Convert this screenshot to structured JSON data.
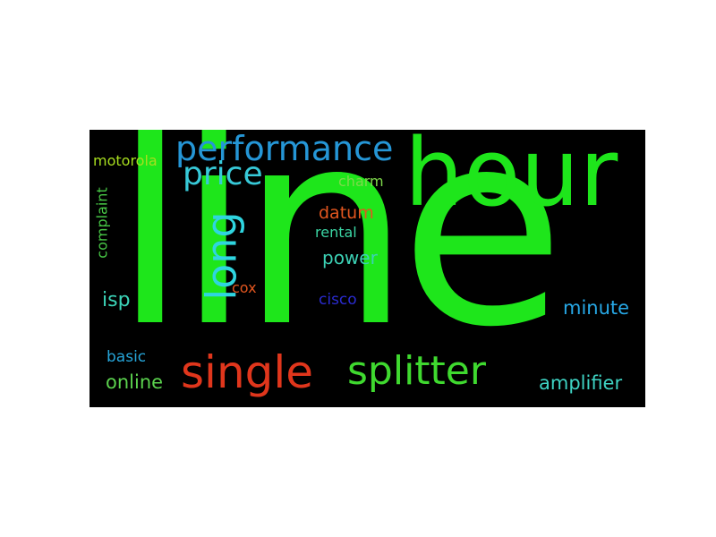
{
  "wordcloud": {
    "background": "#000000",
    "words": [
      {
        "id": "line",
        "text": "line",
        "color": "#1ee61b"
      },
      {
        "id": "hour",
        "text": "hour",
        "color": "#1ee61b"
      },
      {
        "id": "performance",
        "text": "performance",
        "color": "#2596d6"
      },
      {
        "id": "price",
        "text": "price",
        "color": "#37c9d8"
      },
      {
        "id": "long",
        "text": "long",
        "color": "#2fd5e0"
      },
      {
        "id": "single",
        "text": "single",
        "color": "#e0361c"
      },
      {
        "id": "splitter",
        "text": "splitter",
        "color": "#3fd92f"
      },
      {
        "id": "motorola",
        "text": "motorola",
        "color": "#a8de1f"
      },
      {
        "id": "complaint",
        "text": "complaint",
        "color": "#48c846"
      },
      {
        "id": "charm",
        "text": "charm",
        "color": "#7ed94b"
      },
      {
        "id": "datum",
        "text": "datum",
        "color": "#e2561f"
      },
      {
        "id": "rental",
        "text": "rental",
        "color": "#3bd5a4"
      },
      {
        "id": "power",
        "text": "power",
        "color": "#3cd1b5"
      },
      {
        "id": "isp",
        "text": "isp",
        "color": "#3bd4b8"
      },
      {
        "id": "cox",
        "text": "cox",
        "color": "#e2561f"
      },
      {
        "id": "cisco",
        "text": "cisco",
        "color": "#2a2bd0"
      },
      {
        "id": "minute",
        "text": "minute",
        "color": "#27a8e6"
      },
      {
        "id": "basic",
        "text": "basic",
        "color": "#26a5d9"
      },
      {
        "id": "online",
        "text": "online",
        "color": "#5bd24e"
      },
      {
        "id": "amplifier",
        "text": "amplifier",
        "color": "#3ed3c3"
      }
    ]
  }
}
